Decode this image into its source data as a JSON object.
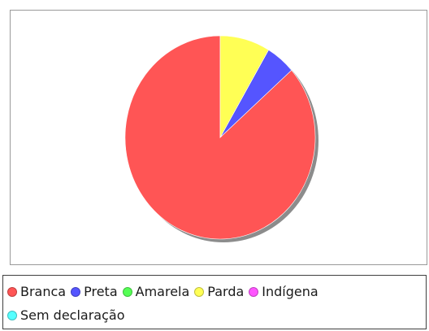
{
  "chart_data": {
    "type": "pie",
    "categories": [
      "Branca",
      "Preta",
      "Amarela",
      "Parda",
      "Indígena",
      "Sem declaração"
    ],
    "values": [
      86.5,
      5.0,
      0.0,
      8.5,
      0.0,
      0.0
    ],
    "colors": [
      "#ff5555",
      "#5555ff",
      "#55ff55",
      "#ffff55",
      "#ff55ff",
      "#55ffff"
    ],
    "start_angle": "12 o'clock",
    "direction": "counterclockwise",
    "legend_position": "bottom",
    "shadow": true
  }
}
